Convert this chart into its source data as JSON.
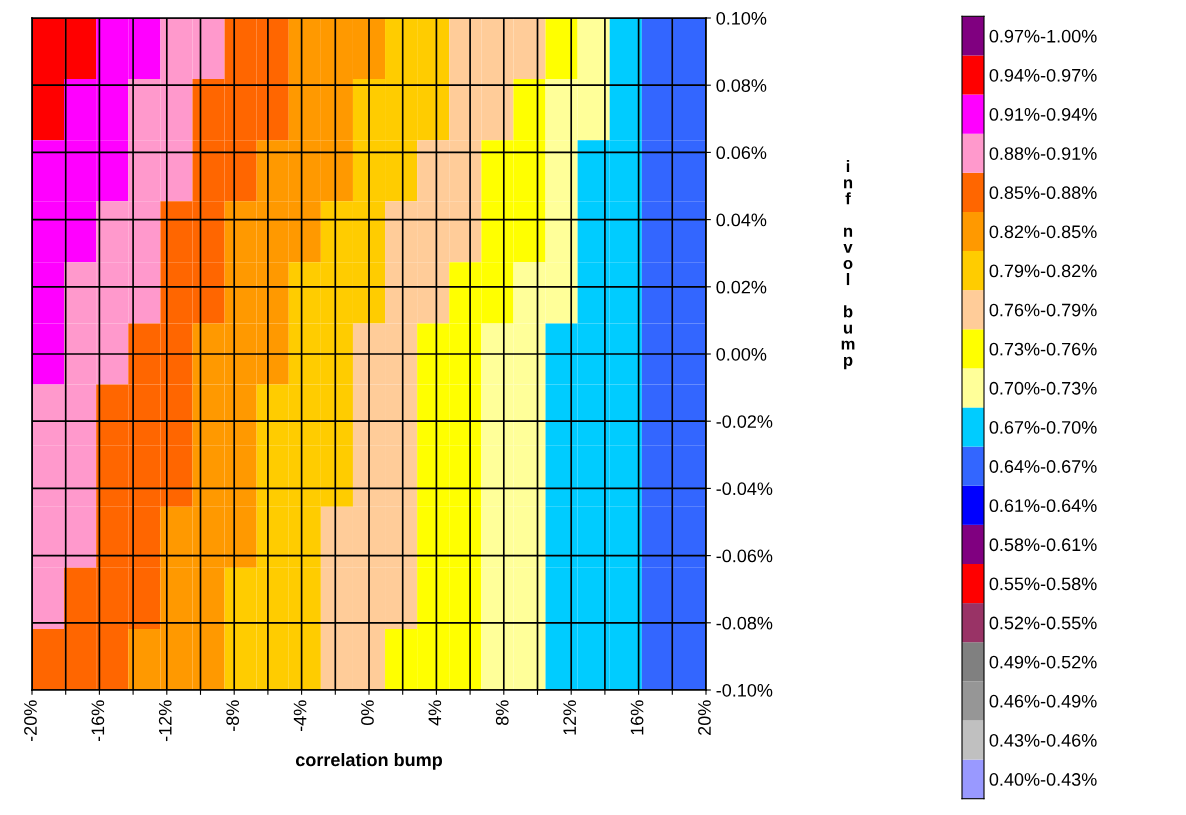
{
  "chart_data": {
    "type": "heatmap",
    "xlabel": "correlation bump",
    "ylabel": "inf nvol bump",
    "xlim": [
      -20,
      20
    ],
    "xticks": [
      {
        "value": -20,
        "label": "-20%"
      },
      {
        "value": -18,
        "label": null
      },
      {
        "value": -16,
        "label": "-16%"
      },
      {
        "value": -14,
        "label": null
      },
      {
        "value": -12,
        "label": "-12%"
      },
      {
        "value": -10,
        "label": null
      },
      {
        "value": -8,
        "label": "-8%"
      },
      {
        "value": -6,
        "label": null
      },
      {
        "value": -4,
        "label": "-4%"
      },
      {
        "value": -2,
        "label": null
      },
      {
        "value": 0,
        "label": "0%"
      },
      {
        "value": 2,
        "label": null
      },
      {
        "value": 4,
        "label": "4%"
      },
      {
        "value": 6,
        "label": null
      },
      {
        "value": 8,
        "label": "8%"
      },
      {
        "value": 10,
        "label": null
      },
      {
        "value": 12,
        "label": "12%"
      },
      {
        "value": 14,
        "label": null
      },
      {
        "value": 16,
        "label": "16%"
      },
      {
        "value": 18,
        "label": null
      },
      {
        "value": 20,
        "label": "20%"
      }
    ],
    "ylim": [
      -0.1,
      0.1
    ],
    "yticks": [
      {
        "value": -0.1,
        "label": "-0.10%"
      },
      {
        "value": -0.08,
        "label": "-0.08%"
      },
      {
        "value": -0.06,
        "label": "-0.06%"
      },
      {
        "value": -0.04,
        "label": "-0.04%"
      },
      {
        "value": -0.02,
        "label": "-0.02%"
      },
      {
        "value": 0,
        "label": "0.00%"
      },
      {
        "value": 0.02,
        "label": "0.02%"
      },
      {
        "value": 0.04,
        "label": "0.04%"
      },
      {
        "value": 0.06,
        "label": "0.06%"
      },
      {
        "value": 0.08,
        "label": "0.08%"
      },
      {
        "value": 0.1,
        "label": "0.10%"
      }
    ],
    "cells": [
      [
        0.956,
        0.944,
        0.93,
        0.917,
        0.902,
        0.885,
        0.872,
        0.86,
        0.848,
        0.837,
        0.825,
        0.813,
        0.799,
        0.786,
        0.773,
        0.761,
        0.733,
        0.705,
        0.683,
        0.663,
        0.655
      ],
      [
        0.947,
        0.935,
        0.921,
        0.908,
        0.893,
        0.877,
        0.864,
        0.852,
        0.84,
        0.829,
        0.817,
        0.805,
        0.791,
        0.777,
        0.764,
        0.752,
        0.726,
        0.701,
        0.681,
        0.662,
        0.655
      ],
      [
        0.938,
        0.925,
        0.912,
        0.899,
        0.885,
        0.869,
        0.857,
        0.845,
        0.833,
        0.821,
        0.809,
        0.796,
        0.782,
        0.769,
        0.755,
        0.742,
        0.719,
        0.697,
        0.678,
        0.662,
        0.655
      ],
      [
        0.928,
        0.916,
        0.902,
        0.889,
        0.876,
        0.862,
        0.849,
        0.837,
        0.825,
        0.814,
        0.801,
        0.788,
        0.774,
        0.76,
        0.747,
        0.733,
        0.713,
        0.693,
        0.676,
        0.661,
        0.655
      ],
      [
        0.919,
        0.906,
        0.893,
        0.88,
        0.868,
        0.854,
        0.842,
        0.83,
        0.818,
        0.806,
        0.793,
        0.779,
        0.765,
        0.752,
        0.738,
        0.723,
        0.706,
        0.689,
        0.673,
        0.661,
        0.655
      ],
      [
        0.91,
        0.897,
        0.884,
        0.871,
        0.859,
        0.846,
        0.834,
        0.822,
        0.81,
        0.798,
        0.785,
        0.771,
        0.757,
        0.743,
        0.729,
        0.714,
        0.699,
        0.685,
        0.671,
        0.66,
        0.655
      ],
      [
        0.904,
        0.891,
        0.879,
        0.866,
        0.854,
        0.842,
        0.83,
        0.818,
        0.806,
        0.794,
        0.782,
        0.768,
        0.754,
        0.74,
        0.727,
        0.713,
        0.699,
        0.685,
        0.671,
        0.66,
        0.655
      ],
      [
        0.897,
        0.885,
        0.874,
        0.861,
        0.85,
        0.838,
        0.826,
        0.814,
        0.802,
        0.791,
        0.779,
        0.766,
        0.752,
        0.738,
        0.725,
        0.712,
        0.698,
        0.685,
        0.671,
        0.66,
        0.655
      ],
      [
        0.891,
        0.88,
        0.868,
        0.857,
        0.845,
        0.833,
        0.822,
        0.81,
        0.799,
        0.787,
        0.775,
        0.763,
        0.749,
        0.735,
        0.723,
        0.711,
        0.698,
        0.684,
        0.671,
        0.66,
        0.655
      ],
      [
        0.884,
        0.874,
        0.863,
        0.852,
        0.841,
        0.829,
        0.818,
        0.806,
        0.795,
        0.784,
        0.772,
        0.761,
        0.747,
        0.733,
        0.721,
        0.71,
        0.697,
        0.684,
        0.671,
        0.66,
        0.655
      ],
      [
        0.878,
        0.868,
        0.858,
        0.847,
        0.836,
        0.825,
        0.814,
        0.802,
        0.791,
        0.78,
        0.769,
        0.758,
        0.744,
        0.73,
        0.719,
        0.709,
        0.697,
        0.684,
        0.671,
        0.66,
        0.655
      ]
    ],
    "clim": [
      0.4,
      1.0
    ],
    "colors": [
      "#9999ff",
      "#c0c0c0",
      "#969696",
      "#808080",
      "#993366",
      "#ff0000",
      "#800080",
      "#0000ff",
      "#3366ff",
      "#00ccff",
      "#ffff99",
      "#ffff00",
      "#ffcc99",
      "#ffcc00",
      "#ff9900",
      "#ff6600",
      "#ff99cc",
      "#ff00ff",
      "#ff0000",
      "#800080"
    ],
    "cticks": [
      {
        "value": 0.415,
        "label": "0.40%-0.43%"
      },
      {
        "value": 0.445,
        "label": "0.43%-0.46%"
      },
      {
        "value": 0.475,
        "label": "0.46%-0.49%"
      },
      {
        "value": 0.505,
        "label": "0.49%-0.52%"
      },
      {
        "value": 0.535,
        "label": "0.52%-0.55%"
      },
      {
        "value": 0.565,
        "label": "0.55%-0.58%"
      },
      {
        "value": 0.595,
        "label": "0.58%-0.61%"
      },
      {
        "value": 0.625,
        "label": "0.61%-0.64%"
      },
      {
        "value": 0.655,
        "label": "0.64%-0.67%"
      },
      {
        "value": 0.685,
        "label": "0.67%-0.70%"
      },
      {
        "value": 0.715,
        "label": "0.70%-0.73%"
      },
      {
        "value": 0.745,
        "label": "0.73%-0.76%"
      },
      {
        "value": 0.775,
        "label": "0.76%-0.79%"
      },
      {
        "value": 0.805,
        "label": "0.79%-0.82%"
      },
      {
        "value": 0.835,
        "label": "0.82%-0.85%"
      },
      {
        "value": 0.865,
        "label": "0.85%-0.88%"
      },
      {
        "value": 0.895,
        "label": "0.88%-0.91%"
      },
      {
        "value": 0.925,
        "label": "0.91%-0.94%"
      },
      {
        "value": 0.955,
        "label": "0.94%-0.97%"
      },
      {
        "value": 0.985,
        "label": "0.97%-1.00%"
      }
    ],
    "grid": true
  }
}
